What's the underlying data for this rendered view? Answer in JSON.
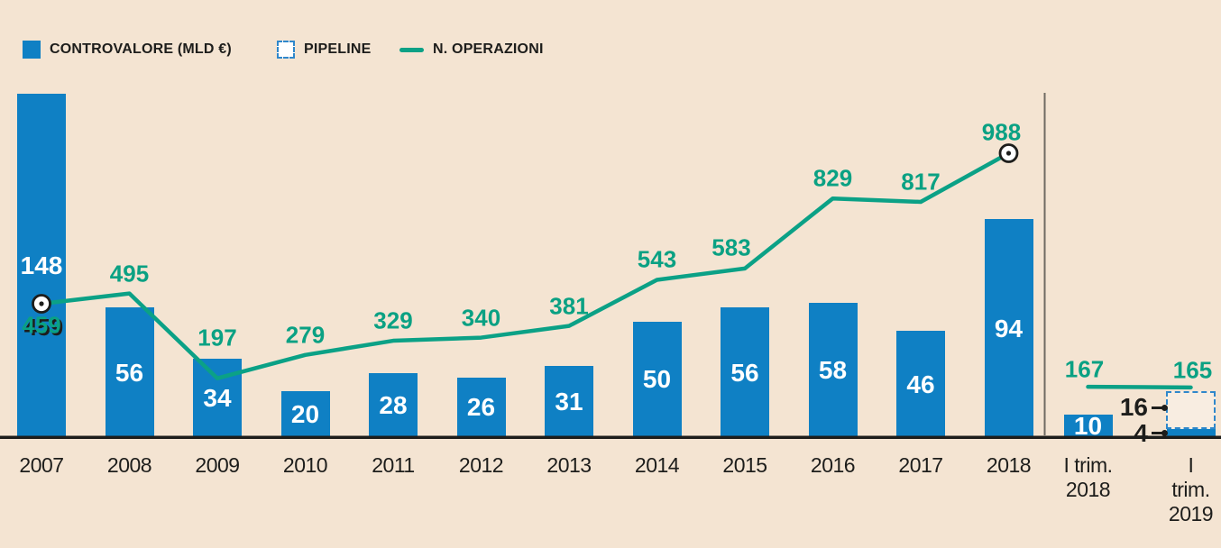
{
  "legend": {
    "controvalore": "CONTROVALORE (MLD €)",
    "pipeline": "PIPELINE",
    "operazioni": "N. OPERAZIONI"
  },
  "colors": {
    "background": "#f4e4d2",
    "bar_blue": "#0f80c4",
    "line_green": "#0ba186",
    "label_green": "#0aa183",
    "text_dark": "#1d1d1b",
    "bar_label_white": "#ffffff",
    "pipeline_border_blue": "#2f87cb",
    "divider_grey": "#6f6a63"
  },
  "chart_data": {
    "type": "bar+line",
    "categories": [
      "2007",
      "2008",
      "2009",
      "2010",
      "2011",
      "2012",
      "2013",
      "2014",
      "2015",
      "2016",
      "2017",
      "2018",
      "I trim.\n2018",
      "I trim.\n2019"
    ],
    "series": [
      {
        "name": "CONTROVALORE (MLD €)",
        "type": "bar",
        "values": [
          148,
          56,
          34,
          20,
          28,
          26,
          31,
          50,
          56,
          58,
          46,
          94,
          10,
          4
        ]
      },
      {
        "name": "PIPELINE",
        "type": "bar-stacked-dashed",
        "values": [
          null,
          null,
          null,
          null,
          null,
          null,
          null,
          null,
          null,
          null,
          null,
          null,
          null,
          16
        ]
      },
      {
        "name": "N. OPERAZIONI",
        "type": "line",
        "values": [
          459,
          495,
          197,
          279,
          329,
          340,
          381,
          543,
          583,
          829,
          817,
          988,
          167,
          165
        ]
      }
    ],
    "annual_count": 12,
    "line_markers_on": [
      "2007",
      "2018"
    ],
    "divider_after": "2018",
    "legend_position": "top-left",
    "grid": "off"
  }
}
